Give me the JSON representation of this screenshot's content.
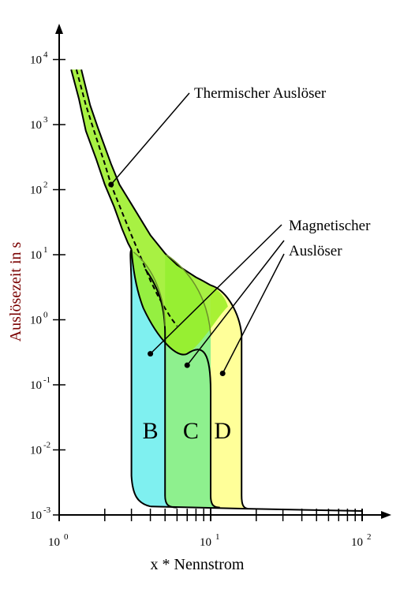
{
  "chart_data": {
    "type": "area",
    "title": "",
    "xlabel": "x * Nennstrom",
    "ylabel": "Auslösezeit in s",
    "x_scale": "log",
    "y_scale": "log",
    "xlim": [
      1,
      100
    ],
    "ylim": [
      0.001,
      10000
    ],
    "x_ticks": [
      {
        "base": "10",
        "exp": "0"
      },
      {
        "base": "10",
        "exp": "1"
      },
      {
        "base": "10",
        "exp": "2"
      }
    ],
    "y_ticks": [
      {
        "base": "10",
        "exp": "-3"
      },
      {
        "base": "10",
        "exp": "-2"
      },
      {
        "base": "10",
        "exp": "-1"
      },
      {
        "base": "10",
        "exp": "0"
      },
      {
        "base": "10",
        "exp": "1"
      },
      {
        "base": "10",
        "exp": "2"
      },
      {
        "base": "10",
        "exp": "3"
      },
      {
        "base": "10",
        "exp": "4"
      }
    ],
    "grid": false,
    "thermal_band": {
      "color": "#99ee22",
      "lower_curve": [
        [
          1.2,
          7000
        ],
        [
          1.5,
          800
        ],
        [
          2,
          120
        ],
        [
          2.5,
          30
        ],
        [
          3,
          12
        ]
      ],
      "upper_curve": [
        [
          1.4,
          7000
        ],
        [
          1.8,
          900
        ],
        [
          2.5,
          120
        ],
        [
          4,
          20
        ],
        [
          6,
          7
        ],
        [
          8,
          4.5
        ],
        [
          10,
          3.4
        ]
      ],
      "nominal_curve": [
        [
          1.3,
          7000
        ],
        [
          1.7,
          800
        ],
        [
          2.2,
          120
        ],
        [
          3,
          20
        ],
        [
          4,
          4
        ],
        [
          5,
          1.5
        ],
        [
          6,
          0.8
        ]
      ]
    },
    "series": [
      {
        "name": "B",
        "color": "#7ff0f0",
        "min_trip": 3,
        "max_trip": 5
      },
      {
        "name": "C",
        "color": "#8ef08e",
        "min_trip": 5,
        "max_trip": 10
      },
      {
        "name": "D",
        "color": "#ffff99",
        "min_trip": 10,
        "max_trip": 16
      }
    ],
    "annotations": [
      {
        "text": "Thermischer Auslöser",
        "target": [
          2.2,
          120
        ]
      },
      {
        "lines": [
          "Magnetischer",
          "Auslöser"
        ],
        "targets": [
          [
            4,
            0.3
          ],
          [
            7,
            0.2
          ],
          [
            12,
            0.15
          ]
        ]
      }
    ]
  },
  "colors": {
    "axis": "#000000",
    "ylabel": "#7a0000",
    "thermal": "#99ee22"
  }
}
